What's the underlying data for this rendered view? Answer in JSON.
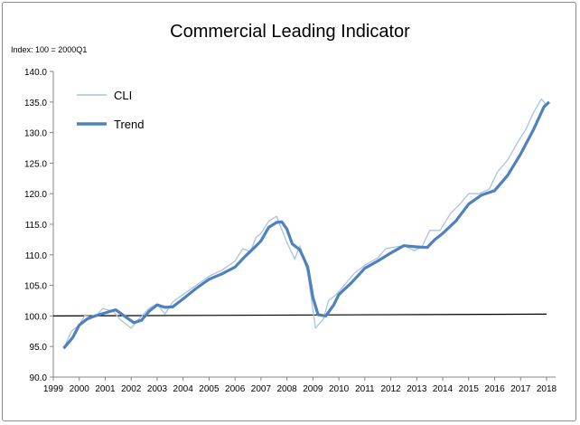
{
  "chart_data": {
    "type": "line",
    "title": "Commercial Leading Indicator",
    "ylabel": "Index: 100 = 2000Q1",
    "xlabel": "",
    "xlim": [
      1999,
      2018
    ],
    "ylim": [
      90,
      140
    ],
    "x_ticks": [
      "1999",
      "2000",
      "2001",
      "2002",
      "2003",
      "2004",
      "2005",
      "2006",
      "2007",
      "2008",
      "2009",
      "2010",
      "2011",
      "2012",
      "2013",
      "2014",
      "2015",
      "2016",
      "2017",
      "2018"
    ],
    "y_ticks": [
      "90.0",
      "95.0",
      "100.0",
      "105.0",
      "110.0",
      "115.0",
      "120.0",
      "125.0",
      "130.0",
      "135.0",
      "140.0"
    ],
    "grid": false,
    "legend": "top-left",
    "reference_line": {
      "y_start": 100,
      "y_end": 100.3
    },
    "series": [
      {
        "name": "CLI",
        "color": "#a9c3e3",
        "x": [
          1999.4,
          1999.7,
          2000.0,
          2000.2,
          2000.6,
          2000.9,
          2001.3,
          2001.6,
          2002.0,
          2002.3,
          2002.7,
          2003.0,
          2003.3,
          2003.6,
          2004.0,
          2004.5,
          2005.0,
          2005.5,
          2006.0,
          2006.3,
          2006.6,
          2006.8,
          2007.0,
          2007.3,
          2007.6,
          2008.0,
          2008.3,
          2008.5,
          2008.8,
          2009.0,
          2009.1,
          2009.4,
          2009.6,
          2009.9,
          2010.2,
          2010.6,
          2011.0,
          2011.5,
          2011.8,
          2012.2,
          2012.5,
          2012.9,
          2013.2,
          2013.5,
          2013.9,
          2014.3,
          2014.6,
          2015.0,
          2015.4,
          2015.8,
          2016.1,
          2016.5,
          2016.9,
          2017.2,
          2017.5,
          2017.8,
          2018.0
        ],
        "y": [
          94.7,
          97.5,
          98.5,
          100.0,
          99.8,
          101.2,
          100.8,
          99.3,
          98.0,
          99.5,
          101.3,
          102.0,
          100.3,
          102.3,
          103.5,
          105.0,
          106.5,
          107.5,
          109.0,
          111.0,
          110.5,
          112.8,
          113.5,
          115.5,
          116.3,
          112.0,
          109.3,
          111.5,
          107.0,
          101.0,
          98.0,
          99.5,
          102.5,
          103.5,
          105.0,
          107.0,
          108.3,
          109.5,
          111.0,
          111.3,
          111.5,
          110.7,
          111.3,
          114.0,
          114.0,
          116.8,
          118.0,
          120.0,
          120.0,
          120.8,
          123.5,
          125.5,
          128.5,
          130.5,
          133.3,
          135.5,
          134.5
        ]
      },
      {
        "name": "Trend",
        "color": "#4f81bd",
        "x": [
          1999.4,
          1999.75,
          2000.0,
          2000.3,
          2000.6,
          2001.0,
          2001.4,
          2001.8,
          2002.1,
          2002.4,
          2002.7,
          2003.0,
          2003.3,
          2003.6,
          2004.0,
          2004.5,
          2005.0,
          2005.5,
          2006.0,
          2006.4,
          2006.8,
          2007.0,
          2007.3,
          2007.6,
          2007.8,
          2008.0,
          2008.2,
          2008.5,
          2008.8,
          2009.0,
          2009.2,
          2009.5,
          2009.8,
          2010.0,
          2010.5,
          2011.0,
          2011.5,
          2012.0,
          2012.5,
          2013.0,
          2013.4,
          2013.7,
          2014.0,
          2014.5,
          2015.0,
          2015.5,
          2016.0,
          2016.5,
          2017.0,
          2017.5,
          2017.9,
          2018.1
        ],
        "y": [
          94.7,
          96.5,
          98.5,
          99.5,
          100.0,
          100.5,
          101.0,
          99.8,
          98.9,
          99.3,
          100.8,
          101.8,
          101.4,
          101.5,
          102.8,
          104.5,
          106.0,
          106.9,
          108.0,
          109.8,
          111.4,
          112.3,
          114.5,
          115.3,
          115.4,
          114.2,
          111.8,
          110.8,
          108.0,
          103.0,
          100.2,
          100.0,
          101.8,
          103.5,
          105.5,
          107.8,
          109.0,
          110.3,
          111.5,
          111.3,
          111.2,
          112.5,
          113.5,
          115.5,
          118.3,
          119.8,
          120.5,
          123.0,
          126.5,
          130.5,
          134.2,
          135.0
        ]
      }
    ]
  }
}
